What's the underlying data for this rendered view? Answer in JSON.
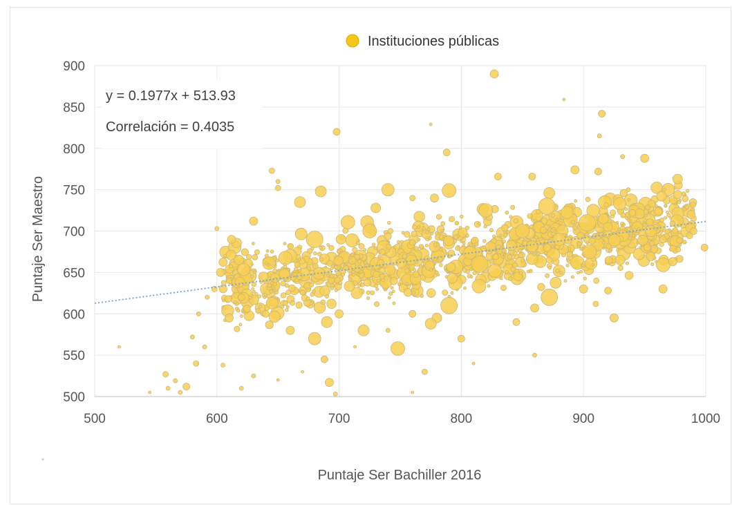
{
  "chart_data": {
    "type": "scatter",
    "legend": {
      "position": "top",
      "entries": [
        {
          "label": "Instituciones públicas",
          "color": "#f5c518"
        }
      ]
    },
    "xlabel": "Puntaje Ser Bachiller 2016",
    "ylabel": "Puntaje Ser Maestro",
    "xlim": [
      500,
      1000
    ],
    "ylim": [
      500,
      900
    ],
    "x_ticks": [
      500,
      600,
      700,
      800,
      900,
      1000
    ],
    "y_ticks": [
      500,
      550,
      600,
      650,
      700,
      750,
      800,
      850,
      900
    ],
    "grid": true,
    "annotations": {
      "equation": "y = 0.1977x + 513.93",
      "correlation": "Correlación = 0.4035"
    },
    "trendline": {
      "slope": 0.1977,
      "intercept": 513.93,
      "style": "dotted",
      "color": "#7fa7c9"
    },
    "series": [
      {
        "name": "Instituciones públicas",
        "color": "#f5c518",
        "points": [
          [
            827,
            890,
            6
          ],
          [
            884,
            859,
            2
          ],
          [
            915,
            842,
            5
          ],
          [
            698,
            820,
            5
          ],
          [
            775,
            829,
            2
          ],
          [
            913,
            815,
            3
          ],
          [
            788,
            795,
            5
          ],
          [
            932,
            790,
            3
          ],
          [
            950,
            788,
            6
          ],
          [
            645,
            773,
            4
          ],
          [
            893,
            774,
            6
          ],
          [
            912,
            772,
            5
          ],
          [
            977,
            763,
            7
          ],
          [
            858,
            766,
            5
          ],
          [
            830,
            766,
            5
          ],
          [
            650,
            760,
            3
          ],
          [
            650,
            752,
            4
          ],
          [
            740,
            750,
            9
          ],
          [
            790,
            749,
            10
          ],
          [
            872,
            746,
            8
          ],
          [
            685,
            748,
            8
          ],
          [
            778,
            740,
            6
          ],
          [
            870,
            730,
            12
          ],
          [
            820,
            725,
            10
          ],
          [
            760,
            740,
            4
          ],
          [
            668,
            735,
            8
          ],
          [
            730,
            728,
            7
          ],
          [
            940,
            722,
            5
          ],
          [
            988,
            720,
            6
          ],
          [
            903,
            710,
            12
          ],
          [
            630,
            712,
            6
          ],
          [
            600,
            703,
            3
          ],
          [
            612,
            690,
            6
          ],
          [
            955,
            700,
            8
          ],
          [
            990,
            700,
            5
          ],
          [
            999,
            680,
            5
          ],
          [
            965,
            690,
            5
          ],
          [
            973,
            663,
            6
          ],
          [
            952,
            680,
            5
          ],
          [
            930,
            665,
            7
          ],
          [
            618,
            665,
            7
          ],
          [
            603,
            650,
            6
          ],
          [
            610,
            640,
            4
          ],
          [
            598,
            630,
            4
          ],
          [
            620,
            620,
            5
          ],
          [
            610,
            595,
            6
          ],
          [
            640,
            600,
            5
          ],
          [
            660,
            580,
            6
          ],
          [
            690,
            590,
            8
          ],
          [
            680,
            570,
            9
          ],
          [
            688,
            545,
            5
          ],
          [
            700,
            600,
            6
          ],
          [
            720,
            580,
            8
          ],
          [
            748,
            558,
            10
          ],
          [
            760,
            600,
            5
          ],
          [
            780,
            595,
            7
          ],
          [
            790,
            610,
            12
          ],
          [
            775,
            588,
            8
          ],
          [
            800,
            570,
            5
          ],
          [
            770,
            530,
            4
          ],
          [
            845,
            590,
            5
          ],
          [
            860,
            607,
            6
          ],
          [
            872,
            620,
            12
          ],
          [
            900,
            630,
            6
          ],
          [
            910,
            612,
            4
          ],
          [
            925,
            595,
            6
          ],
          [
            920,
            628,
            5
          ],
          [
            965,
            630,
            6
          ],
          [
            860,
            550,
            3
          ],
          [
            810,
            540,
            2
          ],
          [
            692,
            517,
            6
          ],
          [
            697,
            503,
            3
          ],
          [
            558,
            527,
            4
          ],
          [
            566,
            519,
            3
          ],
          [
            570,
            505,
            3
          ],
          [
            575,
            512,
            5
          ],
          [
            583,
            540,
            4
          ],
          [
            590,
            560,
            3
          ],
          [
            580,
            572,
            3
          ],
          [
            585,
            600,
            3
          ],
          [
            592,
            620,
            3
          ],
          [
            545,
            505,
            2
          ],
          [
            520,
            560,
            2
          ],
          [
            560,
            510,
            3
          ],
          [
            605,
            538,
            3
          ],
          [
            620,
            510,
            3
          ],
          [
            630,
            525,
            3
          ],
          [
            650,
            520,
            2
          ],
          [
            670,
            530,
            2
          ],
          [
            713,
            560,
            2
          ],
          [
            740,
            580,
            3
          ],
          [
            760,
            505,
            2
          ],
          [
            815,
            660,
            12
          ],
          [
            680,
            690,
            12
          ],
          [
            725,
            700,
            10
          ],
          [
            850,
            700,
            10
          ],
          [
            905,
            675,
            10
          ],
          [
            880,
            690,
            9
          ]
        ]
      }
    ]
  }
}
